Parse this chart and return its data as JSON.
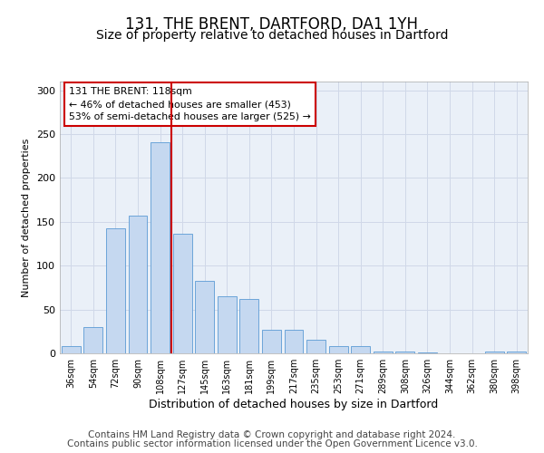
{
  "title": "131, THE BRENT, DARTFORD, DA1 1YH",
  "subtitle": "Size of property relative to detached houses in Dartford",
  "xlabel": "Distribution of detached houses by size in Dartford",
  "ylabel": "Number of detached properties",
  "categories": [
    "36sqm",
    "54sqm",
    "72sqm",
    "90sqm",
    "108sqm",
    "127sqm",
    "145sqm",
    "163sqm",
    "181sqm",
    "199sqm",
    "217sqm",
    "235sqm",
    "253sqm",
    "271sqm",
    "289sqm",
    "308sqm",
    "326sqm",
    "344sqm",
    "362sqm",
    "380sqm",
    "398sqm"
  ],
  "values": [
    8,
    30,
    143,
    157,
    241,
    136,
    83,
    65,
    62,
    27,
    27,
    16,
    8,
    8,
    2,
    2,
    1,
    0,
    0,
    2,
    2
  ],
  "bar_color": "#c5d8f0",
  "bar_edge_color": "#5b9bd5",
  "vline_x": 4.5,
  "vline_color": "#cc0000",
  "annotation_text": "131 THE BRENT: 118sqm\n← 46% of detached houses are smaller (453)\n53% of semi-detached houses are larger (525) →",
  "annotation_box_color": "#ffffff",
  "annotation_box_edge_color": "#cc0000",
  "ylim": [
    0,
    310
  ],
  "yticks": [
    0,
    50,
    100,
    150,
    200,
    250,
    300
  ],
  "grid_color": "#d0d8e8",
  "background_color": "#eaf0f8",
  "footer1": "Contains HM Land Registry data © Crown copyright and database right 2024.",
  "footer2": "Contains public sector information licensed under the Open Government Licence v3.0.",
  "title_fontsize": 12,
  "subtitle_fontsize": 10,
  "footer_fontsize": 7.5,
  "ylabel_fontsize": 8,
  "xlabel_fontsize": 9
}
